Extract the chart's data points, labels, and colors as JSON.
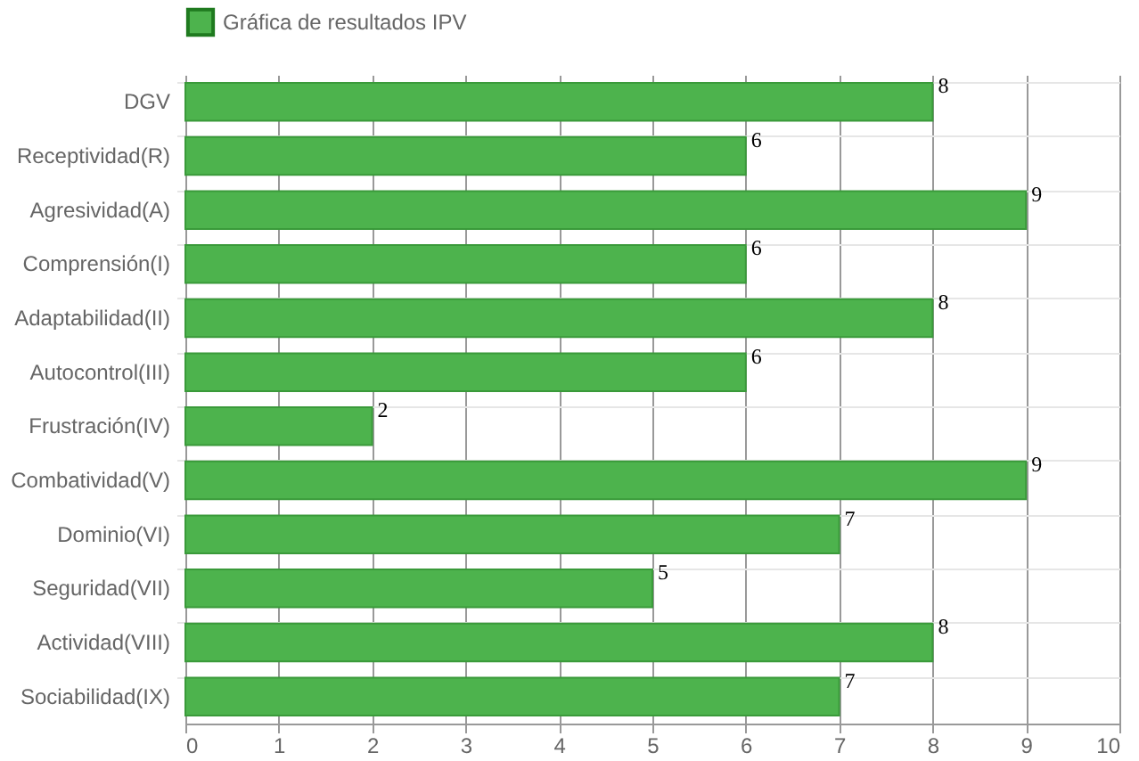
{
  "chart_data": {
    "type": "bar",
    "orientation": "horizontal",
    "categories": [
      "DGV",
      "Receptividad(R)",
      "Agresividad(A)",
      "Comprensión(I)",
      "Adaptabilidad(II)",
      "Autocontrol(III)",
      "Frustración(IV)",
      "Combatividad(V)",
      "Dominio(VI)",
      "Seguridad(VII)",
      "Actividad(VIII)",
      "Sociabilidad(IX)"
    ],
    "series": [
      {
        "name": "Gráfica de resultados IPV",
        "color": "#4db34d",
        "values": [
          8,
          6,
          9,
          6,
          8,
          6,
          2,
          9,
          7,
          5,
          8,
          7
        ]
      }
    ],
    "xlim": [
      0,
      10
    ],
    "xticks": [
      0,
      1,
      2,
      3,
      4,
      5,
      6,
      7,
      8,
      9,
      10
    ],
    "grid": true,
    "legend": "top",
    "data_labels": true
  }
}
